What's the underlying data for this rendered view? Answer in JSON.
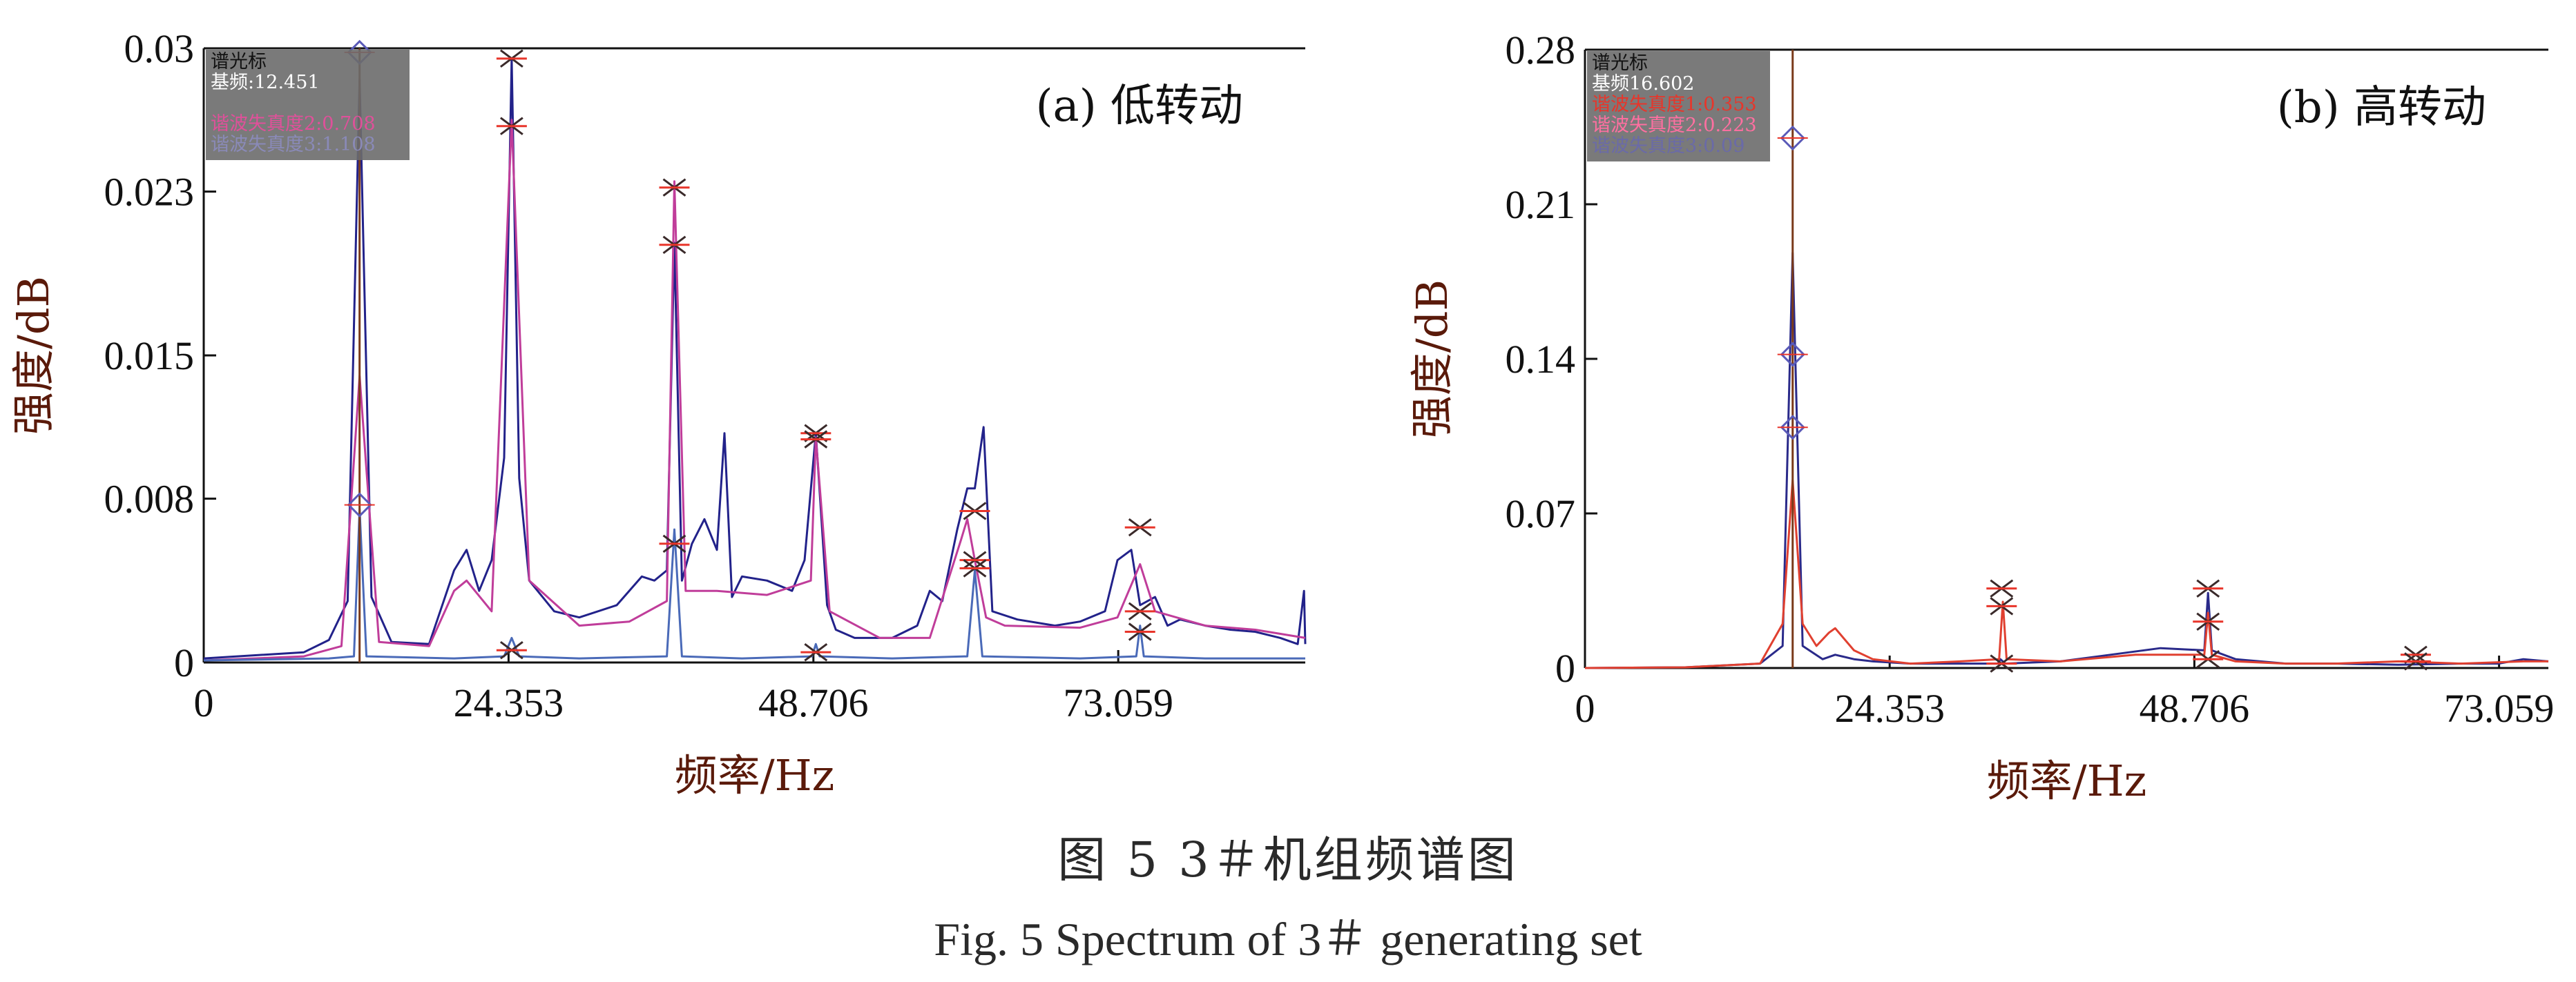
{
  "figure": {
    "caption_cn": "图 5   3＃机组频谱图",
    "caption_en": "Fig. 5  Spectrum of 3＃ generating set"
  },
  "cursor_colors": {
    "box": "#6b6b6b",
    "marker": "#e8352a",
    "diamond": "#5a5ab8"
  },
  "chart_data": [
    {
      "type": "line",
      "title": "(a) 低转动",
      "xlabel": "频率/Hz",
      "ylabel": "强度/dB",
      "xlim": [
        0,
        88
      ],
      "ylim": [
        0,
        0.03
      ],
      "xticks": [
        0,
        24.353,
        48.706,
        73.059
      ],
      "xtick_labels": [
        "0",
        "24.353",
        "48.706",
        "73.059"
      ],
      "yticks": [
        0,
        0.008,
        0.015,
        0.023,
        0.03
      ],
      "ytick_labels": [
        "0",
        "0.008",
        "0.015",
        "0.023",
        "0.03"
      ],
      "grid": false,
      "legend": "none",
      "cursor_box": {
        "lines": [
          {
            "text": "谱光标",
            "color": "#111111"
          },
          {
            "text": "基频:12.451",
            "color": "#ffffff"
          },
          {
            "text": "",
            "color": "#a8a8c8"
          },
          {
            "text": "谐波失真度2:0.708",
            "color": "#e0509a"
          },
          {
            "text": "谐波失真度3:1.108",
            "color": "#8a8ab8"
          }
        ]
      },
      "cursor_line_x": 12.45,
      "series": [
        {
          "color": "#22228a",
          "x": [
            0,
            8,
            10,
            11.5,
            12.45,
            13.4,
            15,
            18,
            20,
            21,
            22,
            23,
            24,
            24.6,
            25.2,
            26,
            28,
            30,
            33,
            35,
            36,
            37,
            37.6,
            38.2,
            39,
            40,
            41,
            41.6,
            42.2,
            43,
            45,
            47,
            48,
            48.9,
            49.8,
            50.5,
            52,
            55,
            57,
            58,
            59,
            60.2,
            61,
            61.6,
            62.3,
            63,
            65,
            68,
            70,
            72,
            73,
            74.1,
            74.8,
            76,
            77,
            78,
            80,
            82,
            84,
            86,
            87.4,
            87.9,
            88
          ],
          "y": [
            0.0002,
            0.0005,
            0.0011,
            0.003,
            0.0285,
            0.0032,
            0.001,
            0.0009,
            0.0045,
            0.0055,
            0.0035,
            0.005,
            0.01,
            0.0295,
            0.009,
            0.004,
            0.0025,
            0.0022,
            0.0028,
            0.0042,
            0.004,
            0.0045,
            0.0205,
            0.004,
            0.0058,
            0.007,
            0.0055,
            0.0112,
            0.0032,
            0.0042,
            0.004,
            0.0035,
            0.005,
            0.0112,
            0.0028,
            0.0016,
            0.0012,
            0.0012,
            0.0018,
            0.0035,
            0.003,
            0.0065,
            0.0085,
            0.0085,
            0.0115,
            0.0025,
            0.0021,
            0.0018,
            0.002,
            0.0025,
            0.005,
            0.0055,
            0.0028,
            0.0032,
            0.0018,
            0.0021,
            0.0018,
            0.0016,
            0.0015,
            0.0012,
            0.0009,
            0.0035,
            0.0009
          ]
        },
        {
          "color": "#c03d9a",
          "x": [
            0,
            8,
            11,
            12.45,
            14,
            18,
            20,
            21,
            23,
            24.6,
            26,
            30,
            34,
            37,
            37.6,
            38.5,
            41,
            45,
            48.5,
            48.9,
            50,
            54,
            58,
            60.5,
            61,
            61.6,
            62.5,
            64,
            70,
            73,
            74.8,
            76,
            80,
            84,
            88
          ],
          "y": [
            0.0001,
            0.0003,
            0.0008,
            0.014,
            0.001,
            0.0008,
            0.0035,
            0.004,
            0.0025,
            0.0265,
            0.004,
            0.0018,
            0.002,
            0.003,
            0.0235,
            0.0035,
            0.0035,
            0.0033,
            0.004,
            0.011,
            0.0025,
            0.0012,
            0.0012,
            0.006,
            0.007,
            0.005,
            0.0022,
            0.0018,
            0.0017,
            0.0022,
            0.0048,
            0.0025,
            0.0018,
            0.0016,
            0.0012
          ]
        },
        {
          "color": "#4a6ab8",
          "x": [
            0,
            10,
            12,
            12.45,
            13,
            20,
            24,
            24.6,
            25.2,
            30,
            37,
            37.6,
            38.2,
            43,
            48.6,
            48.9,
            49.2,
            55,
            61,
            61.6,
            62.2,
            70,
            74.5,
            74.8,
            75.1,
            80,
            88
          ],
          "y": [
            0.0001,
            0.0002,
            0.0003,
            0.0075,
            0.0003,
            0.0002,
            0.0003,
            0.0012,
            0.0003,
            0.0002,
            0.0003,
            0.0065,
            0.0003,
            0.0002,
            0.0003,
            0.0009,
            0.0003,
            0.0002,
            0.0003,
            0.0045,
            0.0003,
            0.0002,
            0.0003,
            0.0018,
            0.0003,
            0.0002,
            0.0002
          ]
        }
      ],
      "markers": [
        {
          "shape": "diamond",
          "x": 12.45,
          "y": 0.0298
        },
        {
          "shape": "diamond",
          "x": 12.45,
          "y": 0.0077
        },
        {
          "shape": "asterisk",
          "x": 24.6,
          "y": 0.0295
        },
        {
          "shape": "asterisk",
          "x": 24.6,
          "y": 0.0262
        },
        {
          "shape": "asterisk",
          "x": 24.6,
          "y": 0.0006
        },
        {
          "shape": "asterisk",
          "x": 37.6,
          "y": 0.0232
        },
        {
          "shape": "asterisk",
          "x": 37.6,
          "y": 0.0204
        },
        {
          "shape": "asterisk",
          "x": 37.6,
          "y": 0.0058
        },
        {
          "shape": "asterisk",
          "x": 48.9,
          "y": 0.0112
        },
        {
          "shape": "asterisk",
          "x": 48.9,
          "y": 0.0109
        },
        {
          "shape": "asterisk",
          "x": 48.9,
          "y": 0.0005
        },
        {
          "shape": "asterisk",
          "x": 61.6,
          "y": 0.0074
        },
        {
          "shape": "asterisk",
          "x": 61.6,
          "y": 0.005
        },
        {
          "shape": "asterisk",
          "x": 61.6,
          "y": 0.0046
        },
        {
          "shape": "asterisk",
          "x": 74.8,
          "y": 0.0066
        },
        {
          "shape": "asterisk",
          "x": 74.8,
          "y": 0.0025
        },
        {
          "shape": "asterisk",
          "x": 74.8,
          "y": 0.0015
        }
      ]
    },
    {
      "type": "line",
      "title": "(b) 高转动",
      "xlabel": "频率/Hz",
      "ylabel": "强度/dB",
      "xlim": [
        0,
        77
      ],
      "ylim": [
        0,
        0.28
      ],
      "xticks": [
        0,
        24.353,
        48.706,
        73.059
      ],
      "xtick_labels": [
        "0",
        "24.353",
        "48.706",
        "73.059"
      ],
      "yticks": [
        0,
        0.07,
        0.14,
        0.21,
        0.28
      ],
      "ytick_labels": [
        "0",
        "0.07",
        "0.14",
        "0.21",
        "0.28"
      ],
      "grid": false,
      "legend": "none",
      "cursor_box": {
        "lines": [
          {
            "text": "谱光标",
            "color": "#111111"
          },
          {
            "text": "基频16.602",
            "color": "#ffffff"
          },
          {
            "text": "谐波失真度1:0.353",
            "color": "#e8352a"
          },
          {
            "text": "谐波失真度2:0.223",
            "color": "#ff6fa0"
          },
          {
            "text": "谐波失真度3:0.09",
            "color": "#6a6aa8"
          }
        ]
      },
      "cursor_line_x": 16.6,
      "series": [
        {
          "color": "#2a2a8a",
          "x": [
            0,
            8,
            14,
            15.8,
            16.6,
            17.4,
            19,
            20,
            21.5,
            23,
            26,
            30,
            33,
            33.2,
            33.6,
            38,
            42,
            46,
            49.5,
            49.8,
            50.1,
            52,
            56,
            60,
            65,
            70,
            73,
            75,
            77
          ],
          "y": [
            0,
            0.0003,
            0.002,
            0.01,
            0.188,
            0.01,
            0.004,
            0.006,
            0.004,
            0.003,
            0.002,
            0.002,
            0.002,
            0.004,
            0.002,
            0.003,
            0.006,
            0.009,
            0.008,
            0.034,
            0.008,
            0.004,
            0.002,
            0.002,
            0.0015,
            0.002,
            0.002,
            0.004,
            0.003
          ]
        },
        {
          "color": "#e04030",
          "x": [
            0,
            8,
            14,
            15.8,
            16.6,
            17.4,
            18.5,
            19.5,
            20,
            21.5,
            23,
            26,
            30,
            33.1,
            33.4,
            33.7,
            38,
            44,
            49.5,
            49.8,
            50.1,
            52,
            56,
            60,
            65,
            70,
            75,
            77
          ],
          "y": [
            0,
            0.0003,
            0.002,
            0.02,
            0.085,
            0.02,
            0.01,
            0.016,
            0.018,
            0.008,
            0.004,
            0.002,
            0.003,
            0.004,
            0.03,
            0.004,
            0.003,
            0.006,
            0.006,
            0.025,
            0.006,
            0.003,
            0.002,
            0.002,
            0.003,
            0.002,
            0.003,
            0.003
          ]
        }
      ],
      "markers": [
        {
          "shape": "diamond",
          "x": 16.6,
          "y": 0.24
        },
        {
          "shape": "diamond",
          "x": 16.6,
          "y": 0.142
        },
        {
          "shape": "diamond",
          "x": 16.6,
          "y": 0.109
        },
        {
          "shape": "asterisk",
          "x": 33.3,
          "y": 0.036
        },
        {
          "shape": "asterisk",
          "x": 33.3,
          "y": 0.028
        },
        {
          "shape": "asterisk",
          "x": 33.3,
          "y": 0.002
        },
        {
          "shape": "asterisk",
          "x": 49.8,
          "y": 0.036
        },
        {
          "shape": "asterisk",
          "x": 49.8,
          "y": 0.021
        },
        {
          "shape": "asterisk",
          "x": 49.8,
          "y": 0.004
        },
        {
          "shape": "asterisk",
          "x": 66.4,
          "y": 0.006
        },
        {
          "shape": "asterisk",
          "x": 66.4,
          "y": 0.003
        }
      ]
    }
  ]
}
